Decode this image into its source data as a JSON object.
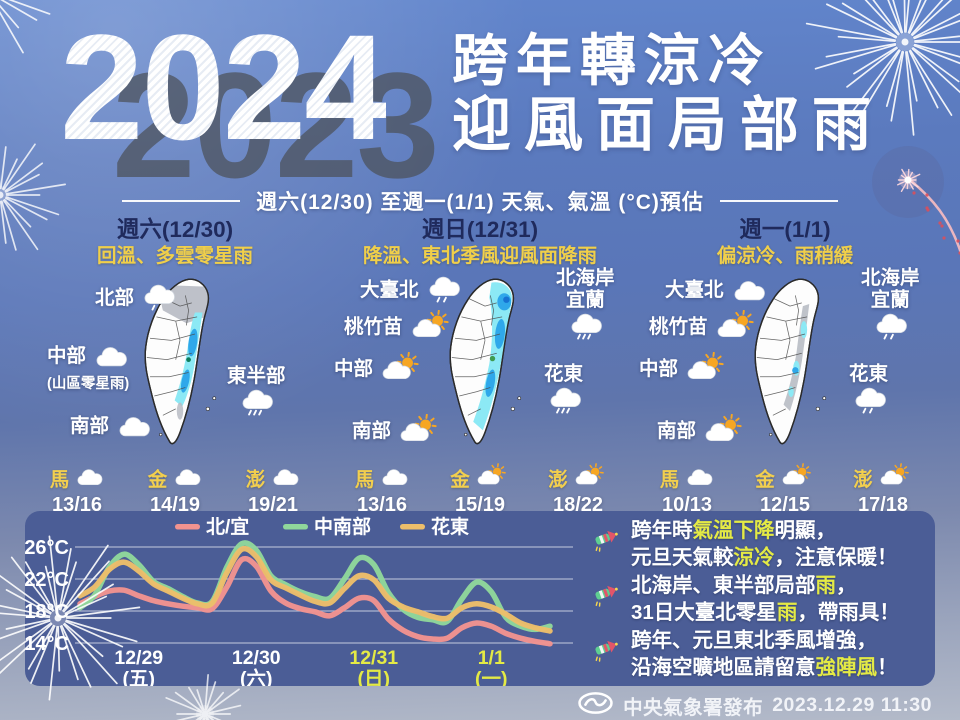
{
  "header": {
    "year": "2024",
    "ghost_year": "2023",
    "headline_line1": "跨年轉涼冷",
    "headline_line2": "迎風面局部雨",
    "subtitle": "週六(12/30) 至週一(1/1) 天氣、氣溫 (°C)預估"
  },
  "colors": {
    "gold": "#f0cf4a",
    "lime": "#e4ea45",
    "navy": "#1f2a5c",
    "panel_bg": "#4b5d96",
    "map_rain_light": "#8ce9f5",
    "map_rain_heavy": "#2fa8ea",
    "map_cloud_gray": "#b8bcc4"
  },
  "panels": [
    {
      "day": "週六(12/30)",
      "desc": "回溫、多雲零星雨",
      "regions": [
        {
          "name": "北部",
          "icon": "cloud-drizzle",
          "slot": "north"
        },
        {
          "name": "中部",
          "note": "(山區零星雨)",
          "icon": "cloud",
          "slot": "central"
        },
        {
          "name": "東半部",
          "icon": "cloud-rain",
          "slot": "easthalf"
        },
        {
          "name": "南部",
          "icon": "cloud",
          "slot": "south"
        }
      ],
      "islands": [
        {
          "name": "馬",
          "icon": "cloud",
          "temp": "13/16"
        },
        {
          "name": "金",
          "icon": "cloud",
          "temp": "14/19"
        },
        {
          "name": "澎",
          "icon": "cloud",
          "temp": "19/21"
        }
      ]
    },
    {
      "day": "週日(12/31)",
      "desc": "降溫、東北季風迎風面降雨",
      "regions": [
        {
          "name": "大臺北",
          "icon": "cloud-drizzle",
          "slot": "taipei"
        },
        {
          "name": "北海岸\n宜蘭",
          "icon": "cloud-rain",
          "slot": "necoast"
        },
        {
          "name": "桃竹苗",
          "icon": "sun-cloud",
          "slot": "taoyuan"
        },
        {
          "name": "中部",
          "icon": "sun-cloud",
          "slot": "central2"
        },
        {
          "name": "花東",
          "icon": "cloud-rain",
          "slot": "huadong"
        },
        {
          "name": "南部",
          "icon": "sun-cloud",
          "slot": "south2"
        }
      ],
      "islands": [
        {
          "name": "馬",
          "icon": "cloud",
          "temp": "13/16"
        },
        {
          "name": "金",
          "icon": "sun-cloud",
          "temp": "15/19"
        },
        {
          "name": "澎",
          "icon": "sun-cloud",
          "temp": "18/22"
        }
      ]
    },
    {
      "day": "週一(1/1)",
      "desc": "偏涼冷、雨稍緩",
      "regions": [
        {
          "name": "大臺北",
          "icon": "cloud",
          "slot": "taipei"
        },
        {
          "name": "北海岸\n宜蘭",
          "icon": "cloud-drizzle",
          "slot": "necoast"
        },
        {
          "name": "桃竹苗",
          "icon": "sun-cloud",
          "slot": "taoyuan"
        },
        {
          "name": "中部",
          "icon": "sun-cloud",
          "slot": "central2"
        },
        {
          "name": "花東",
          "icon": "cloud-drizzle",
          "slot": "huadong"
        },
        {
          "name": "南部",
          "icon": "sun-cloud",
          "slot": "south2"
        }
      ],
      "islands": [
        {
          "name": "馬",
          "icon": "cloud",
          "temp": "10/13"
        },
        {
          "name": "金",
          "icon": "sun-cloud",
          "temp": "12/15"
        },
        {
          "name": "澎",
          "icon": "sun-cloud",
          "temp": "17/18"
        }
      ]
    }
  ],
  "chart_data": {
    "type": "line",
    "unit": "°C",
    "ylim": [
      13,
      27
    ],
    "yticks": [
      26,
      22,
      18,
      14
    ],
    "ytick_labels": [
      "26°C",
      "22°C",
      "18°C",
      "14°C"
    ],
    "grid": true,
    "legend_position": "top",
    "days": [
      {
        "date": "12/29",
        "weekday": "(五)",
        "highlight": false
      },
      {
        "date": "12/30",
        "weekday": "(六)",
        "highlight": false
      },
      {
        "date": "12/31",
        "weekday": "(日)",
        "highlight": true
      },
      {
        "date": "1/1",
        "weekday": "(一)",
        "highlight": true
      }
    ],
    "series": [
      {
        "name": "北/宜",
        "color": "#f2938f",
        "values": [
          18.9,
          19.8,
          20.5,
          20.6,
          19.9,
          19.3,
          18.9,
          18.6,
          18.4,
          18.3,
          21.0,
          24.4,
          23.6,
          20.5,
          19.0,
          18.3,
          17.9,
          17.4,
          18.4,
          19.6,
          19.3,
          17.0,
          15.6,
          14.8,
          14.5,
          14.6,
          15.9,
          16.5,
          16.1,
          15.2,
          14.6,
          14.2,
          13.9
        ]
      },
      {
        "name": "中南部",
        "color": "#90d79b",
        "values": [
          18.4,
          20.0,
          23.5,
          25.1,
          23.8,
          21.7,
          20.8,
          19.8,
          19.0,
          19.2,
          23.5,
          26.4,
          25.6,
          22.4,
          21.3,
          20.4,
          19.8,
          19.6,
          22.0,
          24.6,
          23.8,
          20.3,
          18.2,
          17.2,
          16.9,
          16.7,
          19.5,
          21.6,
          20.4,
          17.2,
          16.1,
          15.7,
          16.1
        ]
      },
      {
        "name": "花東",
        "color": "#edbe6a",
        "values": [
          19.9,
          21.0,
          23.2,
          24.1,
          23.0,
          21.4,
          20.5,
          19.6,
          18.9,
          19.0,
          22.8,
          25.7,
          24.8,
          21.9,
          20.9,
          20.0,
          19.2,
          19.0,
          20.8,
          22.4,
          21.9,
          19.6,
          18.5,
          17.9,
          17.3,
          17.1,
          18.4,
          18.9,
          18.5,
          17.6,
          16.5,
          15.9,
          15.5
        ]
      }
    ]
  },
  "notes": [
    {
      "lines": [
        [
          {
            "t": "跨年時"
          },
          {
            "t": "氣溫下降",
            "hl": true
          },
          {
            "t": "明顯，"
          }
        ],
        [
          {
            "t": "元旦天氣較"
          },
          {
            "t": "涼冷",
            "hl": true
          },
          {
            "t": "，注意保暖！"
          }
        ]
      ]
    },
    {
      "lines": [
        [
          {
            "t": "北海岸、東半部局部"
          },
          {
            "t": "雨",
            "hl": true
          },
          {
            "t": "，"
          }
        ],
        [
          {
            "t": "31日大臺北零星"
          },
          {
            "t": "雨",
            "hl": true
          },
          {
            "t": "，帶雨具！"
          }
        ]
      ]
    },
    {
      "lines": [
        [
          {
            "t": "跨年、元旦東北季風增強，"
          }
        ],
        [
          {
            "t": "沿海空曠地區請留意"
          },
          {
            "t": "強陣風",
            "hl": true
          },
          {
            "t": "！"
          }
        ]
      ]
    }
  ],
  "footer": {
    "agency": "中央氣象署發布",
    "datetime": "2023.12.29 11:30"
  }
}
